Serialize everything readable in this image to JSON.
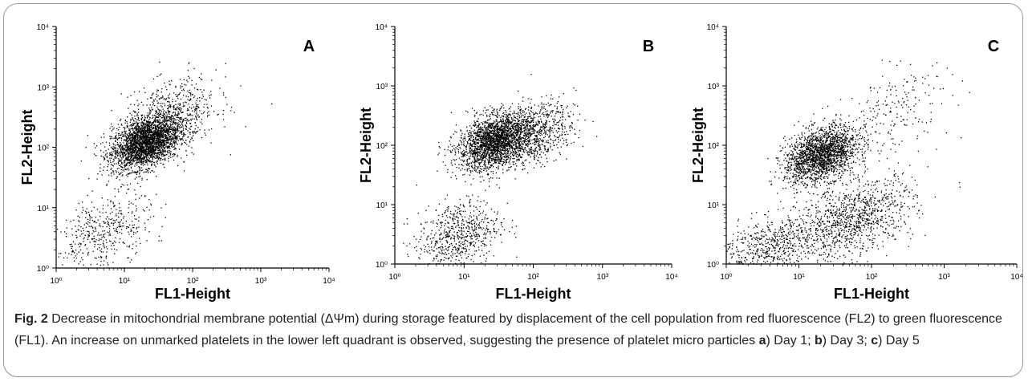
{
  "figure": {
    "caption_label": "Fig. 2",
    "caption_text": "Decrease in mitochondrial membrane potential (ΔΨm) during storage featured by displacement of the cell population from red fluorescence (FL2) to green fluorescence (FL1). An increase on unmarked platelets in the lower left quadrant is observed, suggesting the presence of platelet micro particles",
    "caption_items": [
      {
        "letter": "a",
        "text": ") Day 1; "
      },
      {
        "letter": "b",
        "text": ") Day 3; "
      },
      {
        "letter": "c",
        "text": ") Day 5"
      }
    ]
  },
  "chart_data": [
    {
      "type": "scatter",
      "panel_label": "A",
      "xlabel": "FL1-Height",
      "ylabel": "FL2-Height",
      "x_scale": "log",
      "y_scale": "log",
      "xlim": [
        1,
        10000
      ],
      "ylim": [
        1,
        10000
      ],
      "x_ticks": [
        "10⁰",
        "10¹",
        "10²",
        "10³",
        "10⁴"
      ],
      "y_ticks": [
        "10⁰",
        "10¹",
        "10²",
        "10³",
        "10⁴"
      ],
      "populations": [
        {
          "center": [
            20,
            120
          ],
          "spread_log": [
            0.25,
            0.2
          ],
          "count": 2600
        },
        {
          "center": [
            45,
            300
          ],
          "spread_log": [
            0.35,
            0.3
          ],
          "count": 700
        },
        {
          "center": [
            5,
            4
          ],
          "spread_log": [
            0.35,
            0.3
          ],
          "count": 450
        }
      ]
    },
    {
      "type": "scatter",
      "panel_label": "B",
      "xlabel": "FL1-Height",
      "ylabel": "FL2-Height",
      "x_scale": "log",
      "y_scale": "log",
      "xlim": [
        1,
        10000
      ],
      "ylim": [
        1,
        10000
      ],
      "x_ticks": [
        "10⁰",
        "10¹",
        "10²",
        "10³",
        "10⁴"
      ],
      "y_ticks": [
        "10⁰",
        "10¹",
        "10²",
        "10³",
        "10⁴"
      ],
      "populations": [
        {
          "center": [
            28,
            120
          ],
          "spread_log": [
            0.27,
            0.22
          ],
          "count": 2300
        },
        {
          "center": [
            100,
            150
          ],
          "spread_log": [
            0.3,
            0.25
          ],
          "count": 700
        },
        {
          "center": [
            8,
            3
          ],
          "spread_log": [
            0.3,
            0.3
          ],
          "count": 650
        }
      ]
    },
    {
      "type": "scatter",
      "panel_label": "C",
      "xlabel": "FL1-Height",
      "ylabel": "FL2-Height",
      "x_scale": "log",
      "y_scale": "log",
      "xlim": [
        1,
        10000
      ],
      "ylim": [
        1,
        10000
      ],
      "x_ticks": [
        "10⁰",
        "10¹",
        "10²",
        "10³",
        "10⁴"
      ],
      "y_ticks": [
        "10⁰",
        "10¹",
        "10²",
        "10³",
        "10⁴"
      ],
      "populations": [
        {
          "center": [
            20,
            70
          ],
          "spread_log": [
            0.25,
            0.22
          ],
          "count": 2000
        },
        {
          "center": [
            60,
            6
          ],
          "spread_log": [
            0.4,
            0.3
          ],
          "count": 1000
        },
        {
          "center": [
            4,
            2
          ],
          "spread_log": [
            0.4,
            0.25
          ],
          "count": 650
        },
        {
          "center": [
            200,
            400
          ],
          "spread_log": [
            0.4,
            0.35
          ],
          "count": 200
        }
      ]
    }
  ]
}
